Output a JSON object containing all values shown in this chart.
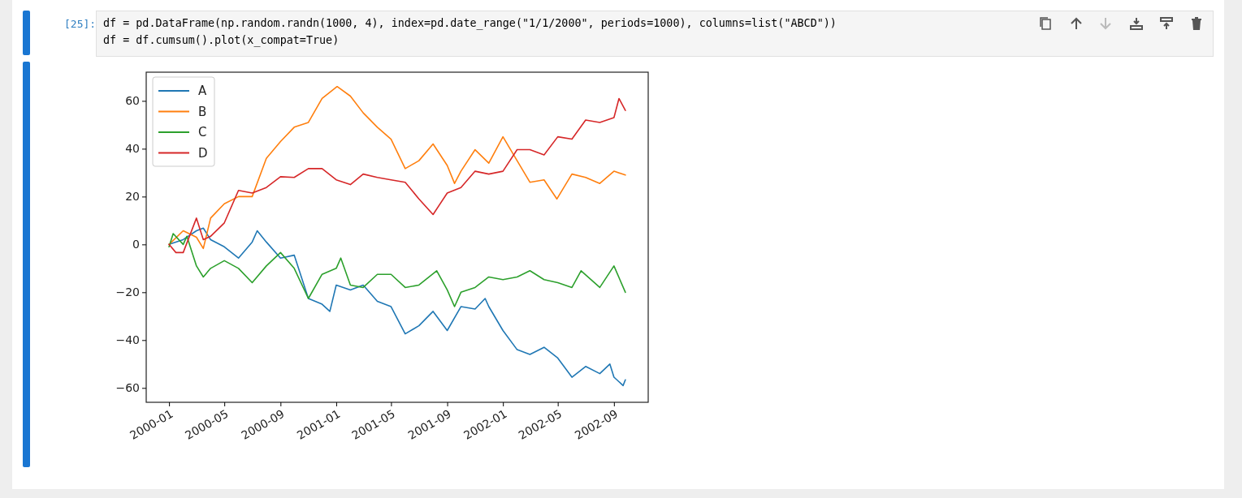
{
  "chart_data": {
    "type": "line",
    "annotations": [
      "[25]:",
      "df = pd.DataFrame(np.random.randn(1000, 4), index=pd.date_range(\"1/1/2000\", periods=1000), columns=list(\"ABCD\"))",
      "df = df.cumsum().plot(x_compat=True)"
    ],
    "xlim": [
      "1999-11-12",
      "2002-11-15"
    ],
    "xticks": [
      "2000-01",
      "2000-05",
      "2000-09",
      "2001-01",
      "2001-05",
      "2001-09",
      "2002-01",
      "2002-05",
      "2002-09"
    ],
    "ylim": [
      -66,
      72
    ],
    "yticks": [
      {
        "value": -60,
        "label": "−60"
      },
      {
        "value": -40,
        "label": "−40"
      },
      {
        "value": -20,
        "label": "−20"
      },
      0,
      20,
      40,
      60
    ],
    "legend": "top left",
    "series": [
      {
        "name": "A",
        "color": "#1f77b4",
        "x": [
          "2000-01-01",
          "2000-02-01",
          "2000-03-01",
          "2000-03-16",
          "2000-04-01",
          "2000-05-01",
          "2000-06-01",
          "2000-07-01",
          "2000-07-12",
          "2000-08-01",
          "2000-09-01",
          "2000-10-01",
          "2000-11-01",
          "2000-12-01",
          "2000-12-18",
          "2001-01-01",
          "2001-02-01",
          "2001-03-01",
          "2001-04-01",
          "2001-05-01",
          "2001-06-01",
          "2001-07-01",
          "2001-08-01",
          "2001-09-01",
          "2001-10-01",
          "2001-11-01",
          "2001-11-23",
          "2001-12-01",
          "2002-01-01",
          "2002-02-01",
          "2002-03-01",
          "2002-04-01",
          "2002-05-01",
          "2002-06-01",
          "2002-07-01",
          "2002-08-01",
          "2002-08-23",
          "2002-09-01",
          "2002-09-21",
          "2002-09-26"
        ],
        "values": [
          0,
          2,
          5.7,
          6.8,
          2,
          -1,
          -5.7,
          1,
          5.7,
          1,
          -5.7,
          -4.5,
          -22.6,
          -25,
          -28,
          -17,
          -19,
          -17,
          -23.8,
          -26,
          -37.4,
          -34,
          -28,
          -36,
          -26,
          -27,
          -22.6,
          -26,
          -36,
          -44,
          -46,
          -43,
          -47.5,
          -55.5,
          -51,
          -54,
          -50,
          -55.5,
          -59,
          -56.6
        ]
      },
      {
        "name": "B",
        "color": "#ff7f0e",
        "x": [
          "2000-01-01",
          "2000-02-01",
          "2000-03-01",
          "2000-03-16",
          "2000-04-01",
          "2000-05-01",
          "2000-06-01",
          "2000-07-01",
          "2000-08-01",
          "2000-09-01",
          "2000-10-01",
          "2000-11-01",
          "2000-12-01",
          "2001-01-03",
          "2001-02-01",
          "2001-03-01",
          "2001-04-01",
          "2001-05-01",
          "2001-06-01",
          "2001-07-01",
          "2001-08-01",
          "2001-09-01",
          "2001-09-17",
          "2001-10-01",
          "2001-11-01",
          "2001-12-01",
          "2002-01-01",
          "2002-02-01",
          "2002-03-01",
          "2002-04-01",
          "2002-04-29",
          "2002-06-01",
          "2002-07-01",
          "2002-08-01",
          "2002-09-01",
          "2002-09-26"
        ],
        "values": [
          0,
          5.7,
          3,
          -1.7,
          11,
          17,
          20,
          20,
          36,
          43,
          49,
          51,
          61,
          66,
          62,
          55,
          49,
          44,
          31.7,
          35,
          42,
          33,
          25.5,
          30.6,
          39.6,
          34,
          45,
          35,
          26,
          27,
          19,
          29.4,
          28,
          25.5,
          30.6,
          29
        ]
      },
      {
        "name": "C",
        "color": "#2ca02c",
        "x": [
          "2000-01-01",
          "2000-01-10",
          "2000-02-01",
          "2000-02-09",
          "2000-03-01",
          "2000-03-16",
          "2000-04-01",
          "2000-05-01",
          "2000-06-01",
          "2000-07-01",
          "2000-08-01",
          "2000-09-01",
          "2000-10-01",
          "2000-11-01",
          "2000-12-01",
          "2001-01-01",
          "2001-01-11",
          "2001-02-01",
          "2001-03-01",
          "2001-04-01",
          "2001-05-01",
          "2001-06-01",
          "2001-07-01",
          "2001-08-09",
          "2001-09-01",
          "2001-09-17",
          "2001-10-01",
          "2001-11-01",
          "2001-12-01",
          "2002-01-01",
          "2002-02-01",
          "2002-03-01",
          "2002-04-01",
          "2002-05-01",
          "2002-06-01",
          "2002-06-21",
          "2002-08-01",
          "2002-09-01",
          "2002-09-26"
        ],
        "values": [
          -1,
          4.5,
          0,
          3.4,
          -9,
          -13.6,
          -10,
          -6.8,
          -10,
          -16,
          -9,
          -3.4,
          -10,
          -22.6,
          -12.5,
          -10,
          -5.7,
          -17,
          -18,
          -12.5,
          -12.5,
          -18,
          -17,
          -11,
          -19,
          -26,
          -20,
          -18,
          -13.6,
          -14.7,
          -13.6,
          -11,
          -14.7,
          -16,
          -18,
          -11,
          -18,
          -9,
          -20
        ]
      },
      {
        "name": "D",
        "color": "#d62728",
        "x": [
          "2000-01-01",
          "2000-01-16",
          "2000-02-01",
          "2000-03-01",
          "2000-03-16",
          "2000-04-01",
          "2000-05-01",
          "2000-06-01",
          "2000-07-01",
          "2000-08-01",
          "2000-09-01",
          "2000-10-01",
          "2000-11-01",
          "2000-12-01",
          "2001-01-01",
          "2001-02-01",
          "2001-03-01",
          "2001-04-01",
          "2001-05-01",
          "2001-06-01",
          "2001-07-01",
          "2001-08-01",
          "2001-09-01",
          "2001-10-01",
          "2001-11-01",
          "2001-12-01",
          "2002-01-01",
          "2002-02-01",
          "2002-03-01",
          "2002-04-01",
          "2002-05-01",
          "2002-06-01",
          "2002-07-01",
          "2002-08-01",
          "2002-09-01",
          "2002-09-12",
          "2002-09-26"
        ],
        "values": [
          0,
          -3.4,
          -3.4,
          11,
          2,
          3.4,
          9,
          22.6,
          21.5,
          23.8,
          28.3,
          28,
          31.7,
          31.7,
          27,
          25,
          29.4,
          28,
          27,
          26,
          19,
          12.5,
          21.5,
          23.8,
          30.6,
          29.4,
          30.6,
          39.6,
          39.6,
          37.4,
          45,
          44,
          52,
          51,
          53,
          61,
          56
        ]
      }
    ]
  }
}
